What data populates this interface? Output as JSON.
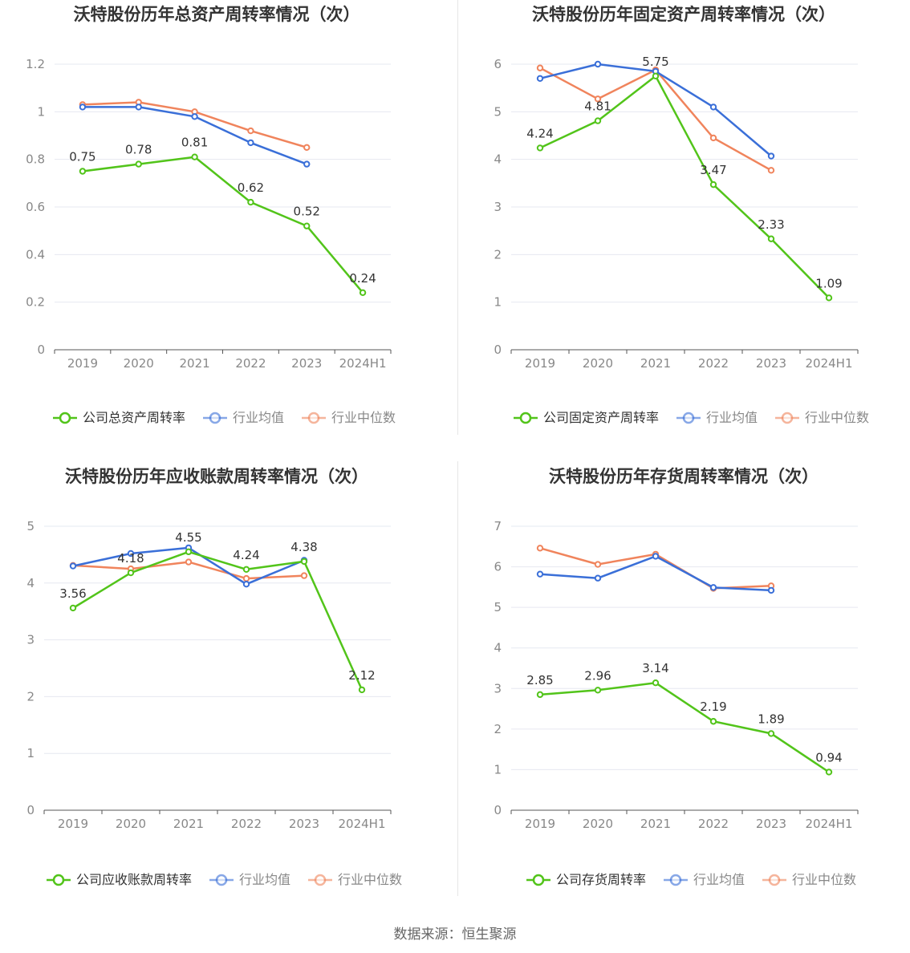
{
  "source_label": "数据来源：恒生聚源",
  "colors": {
    "company": "#52c41a",
    "avg": "#3a6fd8",
    "median": "#f0845c",
    "grid": "#e6e8f0",
    "axis": "#666666",
    "text": "#333333"
  },
  "chart_data": [
    {
      "type": "line",
      "title": "沃特股份历年总资产周转率情况（次）",
      "categories": [
        "2019",
        "2020",
        "2021",
        "2022",
        "2023",
        "2024H1"
      ],
      "y_ticks": [
        "0",
        "0.2",
        "0.4",
        "0.6",
        "0.8",
        "1",
        "1.2"
      ],
      "ylim": [
        0,
        1.2
      ],
      "series": [
        {
          "name": "公司总资产周转率",
          "role": "company",
          "values": [
            0.75,
            0.78,
            0.81,
            0.62,
            0.52,
            0.24
          ],
          "labels": [
            "0.75",
            "0.78",
            "0.81",
            "0.62",
            "0.52",
            "0.24"
          ]
        },
        {
          "name": "行业均值",
          "role": "avg",
          "values": [
            1.02,
            1.02,
            0.98,
            0.87,
            0.78,
            null
          ]
        },
        {
          "name": "行业中位数",
          "role": "median",
          "values": [
            1.03,
            1.04,
            1.0,
            0.92,
            0.85,
            null
          ]
        }
      ]
    },
    {
      "type": "line",
      "title": "沃特股份历年固定资产周转率情况（次）",
      "categories": [
        "2019",
        "2020",
        "2021",
        "2022",
        "2023",
        "2024H1"
      ],
      "y_ticks": [
        "0",
        "1",
        "2",
        "3",
        "4",
        "5",
        "6"
      ],
      "ylim": [
        0,
        6
      ],
      "series": [
        {
          "name": "公司固定资产周转率",
          "role": "company",
          "values": [
            4.24,
            4.81,
            5.75,
            3.47,
            2.33,
            1.09
          ],
          "labels": [
            "4.24",
            "4.81",
            "5.75",
            "3.47",
            "2.33",
            "1.09"
          ]
        },
        {
          "name": "行业均值",
          "role": "avg",
          "values": [
            5.7,
            6.0,
            5.85,
            5.1,
            4.07,
            null
          ]
        },
        {
          "name": "行业中位数",
          "role": "median",
          "values": [
            5.92,
            5.27,
            5.88,
            4.45,
            3.77,
            null
          ]
        }
      ]
    },
    {
      "type": "line",
      "title": "沃特股份历年应收账款周转率情况（次）",
      "categories": [
        "2019",
        "2020",
        "2021",
        "2022",
        "2023",
        "2024H1"
      ],
      "y_ticks": [
        "0",
        "1",
        "2",
        "3",
        "4",
        "5"
      ],
      "ylim": [
        0,
        5
      ],
      "series": [
        {
          "name": "公司应收账款周转率",
          "role": "company",
          "values": [
            3.56,
            4.18,
            4.55,
            4.24,
            4.38,
            2.12
          ],
          "labels": [
            "3.56",
            "4.18",
            "4.55",
            "4.24",
            "4.38",
            "2.12"
          ]
        },
        {
          "name": "行业均值",
          "role": "avg",
          "values": [
            4.3,
            4.52,
            4.62,
            3.98,
            4.4,
            null
          ]
        },
        {
          "name": "行业中位数",
          "role": "median",
          "values": [
            4.31,
            4.25,
            4.37,
            4.08,
            4.13,
            null
          ]
        }
      ]
    },
    {
      "type": "line",
      "title": "沃特股份历年存货周转率情况（次）",
      "categories": [
        "2019",
        "2020",
        "2021",
        "2022",
        "2023",
        "2024H1"
      ],
      "y_ticks": [
        "0",
        "1",
        "2",
        "3",
        "4",
        "5",
        "6",
        "7"
      ],
      "ylim": [
        0,
        7
      ],
      "series": [
        {
          "name": "公司存货周转率",
          "role": "company",
          "values": [
            2.85,
            2.96,
            3.14,
            2.19,
            1.89,
            0.94
          ],
          "labels": [
            "2.85",
            "2.96",
            "3.14",
            "2.19",
            "1.89",
            "0.94"
          ]
        },
        {
          "name": "行业均值",
          "role": "avg",
          "values": [
            5.82,
            5.72,
            6.26,
            5.49,
            5.42,
            null
          ]
        },
        {
          "name": "行业中位数",
          "role": "median",
          "values": [
            6.46,
            6.06,
            6.31,
            5.47,
            5.53,
            null
          ]
        }
      ]
    }
  ]
}
